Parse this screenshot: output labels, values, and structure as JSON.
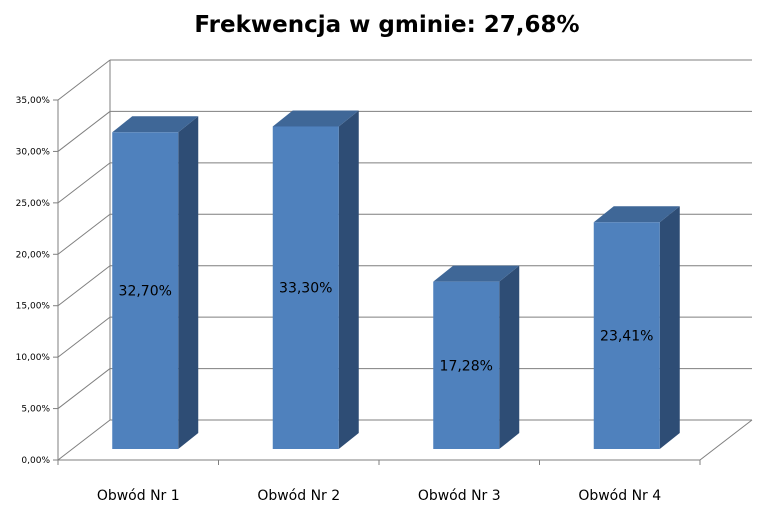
{
  "chart_data": {
    "type": "bar",
    "title": "Frekwencja w gminie: 27,68%",
    "categories": [
      "Obwód Nr 1",
      "Obwód Nr 2",
      "Obwód Nr 3",
      "Obwód Nr 4"
    ],
    "values": [
      32.7,
      33.3,
      17.28,
      23.41
    ],
    "data_labels": [
      "32,70%",
      "33,30%",
      "17,28%",
      "23,41%"
    ],
    "ylim": [
      0,
      35
    ],
    "yticks": [
      0,
      5,
      10,
      15,
      20,
      25,
      30,
      35
    ],
    "ytick_labels": [
      "0,00%",
      "5,00%",
      "10,00%",
      "15,00%",
      "20,00%",
      "25,00%",
      "30,00%",
      "35,00%"
    ],
    "xlabel": "",
    "ylabel": "",
    "grid": true,
    "legend": false,
    "colors": {
      "bar_front": "#4f81bd",
      "bar_side": "#2e4d75",
      "bar_top": "#3f6797",
      "grid": "#7f7f7f"
    }
  }
}
